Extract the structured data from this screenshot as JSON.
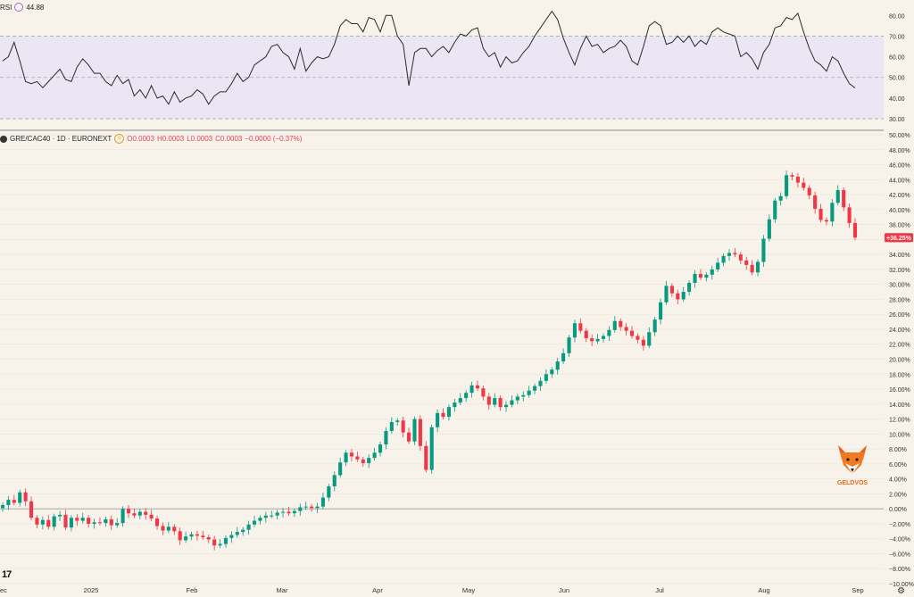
{
  "rsi": {
    "label": "RSI",
    "value": "44.88",
    "ticks": [
      80,
      70,
      60,
      50,
      40,
      30
    ],
    "tick_labels": [
      "80.00",
      "70.00",
      "60.00",
      "50.00",
      "40.00",
      "30.00"
    ],
    "range": [
      27,
      84
    ],
    "band": [
      30,
      70
    ]
  },
  "legend": {
    "symbol": "GRE/CAC40 · 1D · EURONEXT",
    "o": "O0.0003",
    "h": "H0.0003",
    "l": "L0.0003",
    "c": "C0.0003",
    "change": "−0.0000 (−0.37%)"
  },
  "last_price_label": "+36.25%",
  "watermark": "GELDVOS",
  "colors": {
    "up": "#089981",
    "down": "#f23645",
    "rsi_line": "#2a2a2a",
    "rsi_band": "#ebe6f4",
    "background": "#f7f3ea"
  },
  "chart_data": {
    "type": "candlestick",
    "y_unit": "%",
    "ylim": [
      -10,
      50
    ],
    "y_ticks": [
      50,
      48,
      46,
      44,
      42,
      40,
      38,
      36,
      34,
      32,
      30,
      28,
      26,
      24,
      22,
      20,
      18,
      16,
      14,
      12,
      10,
      8,
      6,
      4,
      2,
      0,
      -2,
      -4,
      -6,
      -8,
      -10
    ],
    "y_tick_labels": [
      "50.00%",
      "48.00%",
      "46.00%",
      "44.00%",
      "42.00%",
      "40.00%",
      "38.00%",
      "36.00%",
      "34.00%",
      "32.00%",
      "30.00%",
      "28.00%",
      "26.00%",
      "24.00%",
      "22.00%",
      "20.00%",
      "18.00%",
      "16.00%",
      "14.00%",
      "12.00%",
      "10.00%",
      "8.00%",
      "6.00%",
      "4.00%",
      "2.00%",
      "0.00%",
      "−2.00%",
      "−4.00%",
      "−6.00%",
      "−8.00%",
      "−10.00%"
    ],
    "x_labels": [
      "ec",
      "2025",
      "Feb",
      "Mar",
      "Apr",
      "May",
      "Jun",
      "Jul",
      "Aug",
      "Sep"
    ],
    "last_value": 36.25,
    "closes": [
      0.5,
      1.2,
      0.8,
      2.2,
      1.0,
      -1.2,
      -2.1,
      -1.5,
      -2.4,
      -1.0,
      -0.8,
      -2.5,
      -1.2,
      -1.6,
      -1.2,
      -2.0,
      -1.8,
      -1.9,
      -1.4,
      -2.2,
      -1.9,
      0.0,
      -0.6,
      -0.9,
      -0.4,
      -0.8,
      -1.3,
      -2.3,
      -2.9,
      -2.4,
      -3.0,
      -4.2,
      -3.7,
      -3.4,
      -3.6,
      -3.8,
      -4.1,
      -4.9,
      -4.7,
      -3.9,
      -3.5,
      -3.1,
      -2.8,
      -2.1,
      -1.6,
      -1.2,
      -0.9,
      -0.9,
      -0.5,
      -0.4,
      -0.6,
      -0.3,
      0.2,
      0.3,
      0.1,
      0.3,
      1.5,
      3.0,
      4.5,
      6.2,
      7.5,
      7.0,
      6.6,
      6.1,
      6.8,
      7.5,
      8.6,
      10.4,
      11.6,
      11.8,
      10.2,
      9.0,
      12.0,
      8.4,
      5.2,
      10.9,
      12.8,
      12.3,
      13.6,
      14.2,
      14.8,
      15.5,
      16.5,
      16.1,
      15.0,
      13.9,
      14.8,
      13.6,
      13.9,
      14.5,
      15.0,
      15.2,
      15.8,
      16.4,
      17.1,
      18.0,
      18.6,
      19.7,
      20.8,
      22.9,
      24.8,
      23.8,
      22.8,
      22.4,
      22.7,
      23.1,
      23.9,
      25.1,
      24.3,
      23.8,
      23.1,
      22.6,
      21.8,
      23.6,
      25.3,
      27.6,
      29.8,
      28.8,
      28.0,
      29.0,
      30.2,
      31.4,
      30.9,
      31.3,
      32.0,
      32.9,
      33.8,
      34.2,
      34.0,
      33.2,
      32.6,
      31.6,
      33.0,
      36.1,
      38.7,
      41.2,
      41.8,
      44.6,
      44.4,
      43.6,
      42.9,
      41.9,
      40.1,
      38.6,
      38.4,
      40.9,
      42.6,
      40.3,
      38.2,
      36.25
    ],
    "rsi_values": [
      58,
      60,
      67,
      58,
      48,
      47,
      48,
      45,
      48,
      51,
      54,
      49,
      48,
      55,
      59,
      56,
      52,
      52,
      48,
      46,
      51,
      47,
      49,
      41,
      44,
      40,
      46,
      40,
      41,
      37,
      43,
      38,
      40,
      41,
      44,
      42,
      37,
      41,
      43,
      43,
      47,
      52,
      48,
      50,
      56,
      58,
      60,
      65,
      66,
      62,
      60,
      54,
      64,
      53,
      57,
      60,
      59,
      60,
      66,
      75,
      78,
      76,
      76,
      72,
      79,
      78,
      72,
      80,
      80,
      70,
      66,
      46,
      62,
      64,
      64,
      60,
      63,
      65,
      62,
      67,
      71,
      70,
      73,
      74,
      64,
      60,
      62,
      55,
      60,
      57,
      58,
      62,
      65,
      70,
      74,
      78,
      82,
      78,
      69,
      62,
      56,
      64,
      70,
      65,
      66,
      62,
      64,
      65,
      68,
      65,
      58,
      56,
      65,
      75,
      77,
      75,
      66,
      67,
      70,
      67,
      70,
      65,
      68,
      66,
      72,
      74,
      72,
      71,
      70,
      60,
      62,
      59,
      54,
      62,
      66,
      74,
      75,
      79,
      78,
      81,
      72,
      64,
      58,
      56,
      53,
      60,
      58,
      52,
      47,
      44.88
    ]
  }
}
